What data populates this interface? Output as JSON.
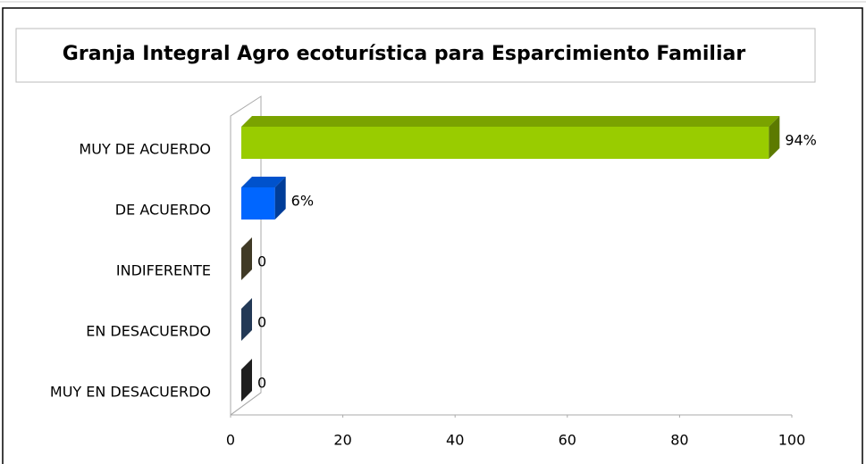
{
  "chart_data": {
    "type": "bar3d_horizontal",
    "title": "Granja Integral  Agro ecoturística para Esparcimiento Familiar",
    "categories": [
      "MUY DE ACUERDO",
      "DE ACUERDO",
      "INDIFERENTE",
      "EN DESACUERDO",
      "MUY EN DESACUERDO"
    ],
    "values": [
      94,
      6,
      0,
      0,
      0
    ],
    "value_labels": [
      "94%",
      "6%",
      "0",
      "0",
      "0"
    ],
    "colors": [
      "#99cc00",
      "#0066ff",
      "#6b6040",
      "#3a5f8f",
      "#333333"
    ],
    "xlim": [
      0,
      100
    ],
    "xticks": [
      0,
      20,
      40,
      60,
      80,
      100
    ],
    "grid": false
  }
}
